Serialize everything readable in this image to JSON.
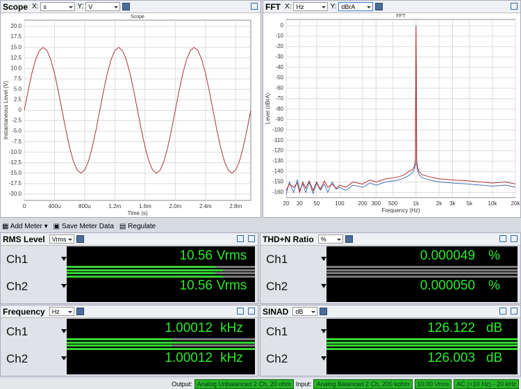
{
  "scope": {
    "header": {
      "title": "Scope",
      "x_label": "X:",
      "x_unit": "s",
      "y_label": "Y:",
      "y_unit": "V"
    },
    "chart_data": {
      "type": "line",
      "title": "Scope",
      "x_axis_label": "Time (s)",
      "y_axis_label": "Instantaneous Level (V)",
      "x": [
        0,
        5e-05,
        0.0001,
        0.00015,
        0.0002,
        0.00025,
        0.0003,
        0.00035,
        0.0004,
        0.00045,
        0.0005,
        0.00055,
        0.0006,
        0.00065,
        0.0007,
        0.00075,
        0.0008,
        0.00085,
        0.0009,
        0.00095,
        0.001,
        0.00105,
        0.0011,
        0.00115,
        0.0012,
        0.00125,
        0.0013,
        0.00135,
        0.0014,
        0.00145,
        0.0015,
        0.00155,
        0.0016,
        0.00165,
        0.0017,
        0.00175,
        0.0018,
        0.00185,
        0.0019,
        0.00195,
        0.002,
        0.00205,
        0.0021,
        0.00215,
        0.0022,
        0.00225,
        0.0023,
        0.00235,
        0.0024,
        0.00245,
        0.0025,
        0.00255,
        0.0026,
        0.00265,
        0.0027,
        0.00275,
        0.0028,
        0.00285,
        0.0029,
        0.00295,
        0.003
      ],
      "series": [
        {
          "color": "#a8323e",
          "values": [
            0,
            4.64,
            8.82,
            12.14,
            14.27,
            15,
            14.27,
            12.14,
            8.82,
            4.64,
            0,
            -4.64,
            -8.82,
            -12.14,
            -14.27,
            -15,
            -14.27,
            -12.14,
            -8.82,
            -4.64,
            0,
            4.64,
            8.82,
            12.14,
            14.27,
            15,
            14.27,
            12.14,
            8.82,
            4.64,
            0,
            -4.64,
            -8.82,
            -12.14,
            -14.27,
            -15,
            -14.27,
            -12.14,
            -8.82,
            -4.64,
            0,
            4.64,
            8.82,
            12.14,
            14.27,
            15,
            14.27,
            12.14,
            8.82,
            4.64,
            0,
            -4.64,
            -8.82,
            -12.14,
            -14.27,
            -15,
            -14.27,
            -12.14,
            -8.82,
            -4.64,
            0
          ]
        }
      ],
      "xlim": [
        0,
        0.003
      ],
      "xticks": [
        0,
        {
          "value": 0.0004,
          "label": "400u"
        },
        {
          "value": 0.0008,
          "label": "800u"
        },
        {
          "value": 0.0012,
          "label": "1.2m"
        },
        {
          "value": 0.0016,
          "label": "1.6m"
        },
        {
          "value": 0.002,
          "label": "2.0m"
        },
        {
          "value": 0.0024,
          "label": "2.4m"
        },
        {
          "value": 0.0028,
          "label": "2.8m"
        }
      ],
      "ylim": [
        -21.5,
        21.5
      ],
      "yticks": [
        {
          "value": 20,
          "label": "20.0"
        },
        17.5,
        {
          "value": 15,
          "label": "15.0"
        },
        12.5,
        {
          "value": 10,
          "label": "10.0"
        },
        7.5,
        {
          "value": 5,
          "label": "5.0"
        },
        2.5,
        0,
        -2.5,
        {
          "value": -5,
          "label": "-5.0"
        },
        -7.5,
        {
          "value": -10,
          "label": "-10.0"
        },
        -12.5,
        {
          "value": -15,
          "label": "-15.0"
        },
        -17.5,
        {
          "value": -20,
          "label": "-20.0"
        }
      ],
      "grid": true
    }
  },
  "fft": {
    "header": {
      "title": "FFT",
      "x_label": "X:",
      "x_unit": "Hz",
      "y_label": "Y:",
      "y_unit": "dBrA"
    },
    "chart_data": {
      "type": "line",
      "title": "FFT",
      "x_axis_label": "Frequency (Hz)",
      "y_axis_label": "Level (dBrA)",
      "xlog": true,
      "x": [
        20,
        22,
        25,
        28,
        30,
        33,
        36,
        40,
        45,
        50,
        56,
        63,
        70,
        80,
        90,
        100,
        120,
        150,
        200,
        250,
        300,
        400,
        500,
        600,
        700,
        800,
        900,
        950,
        980,
        1000,
        1020,
        1050,
        1100,
        1200,
        1500,
        2000,
        3000,
        5000,
        7000,
        10000,
        15000,
        20000
      ],
      "series": [
        {
          "color": "#4a6fb0",
          "values": [
            -162,
            -150,
            -160,
            -148,
            -158,
            -152,
            -160,
            -150,
            -161,
            -151,
            -158,
            -152,
            -160,
            -150,
            -157,
            -155,
            -158,
            -153,
            -155,
            -151,
            -153,
            -150,
            -149,
            -148,
            -146,
            -144,
            -141,
            -138,
            -133,
            0,
            -133,
            -139,
            -143,
            -146,
            -148,
            -150,
            -151,
            -152,
            -153,
            -154,
            -153,
            -155
          ]
        },
        {
          "color": "#b03030",
          "values": [
            -158,
            -152,
            -155,
            -151,
            -160,
            -150,
            -156,
            -149,
            -158,
            -150,
            -157,
            -149,
            -155,
            -152,
            -156,
            -153,
            -155,
            -150,
            -152,
            -148,
            -150,
            -147,
            -146,
            -145,
            -143,
            -140,
            -138,
            -135,
            -130,
            0,
            -130,
            -136,
            -140,
            -143,
            -145,
            -147,
            -148,
            -149,
            -150,
            -151,
            -150,
            -152
          ]
        }
      ],
      "xlim": [
        20,
        20000
      ],
      "xticks": [
        20,
        30,
        50,
        100,
        200,
        300,
        500,
        {
          "value": 1000,
          "label": "1k"
        },
        {
          "value": 2000,
          "label": "2k"
        },
        {
          "value": 3000,
          "label": "3k"
        },
        {
          "value": 5000,
          "label": "5k"
        },
        {
          "value": 10000,
          "label": "10k"
        },
        {
          "value": 20000,
          "label": "20k"
        }
      ],
      "ylim": [
        -165,
        6
      ],
      "yticks": [
        0,
        -10,
        -20,
        -30,
        -40,
        -50,
        -60,
        -70,
        -80,
        -90,
        -100,
        -110,
        -120,
        -130,
        -140,
        -150,
        -160
      ],
      "grid": true
    }
  },
  "toolbar": {
    "add_meter": "Add Meter",
    "save": "Save Meter Data",
    "regulate": "Regulate"
  },
  "meters": [
    {
      "title": "RMS Level",
      "unit": "Vrms",
      "channels": [
        {
          "label": "Ch1",
          "value": "10.56",
          "unit": "Vrms"
        },
        {
          "label": "Ch2",
          "value": "10.56",
          "unit": "Vrms"
        }
      ]
    },
    {
      "title": "THD+N Ratio",
      "unit": "%",
      "channels": [
        {
          "label": "Ch1",
          "value": "0.000049",
          "unit": "%"
        },
        {
          "label": "Ch2",
          "value": "0.000050",
          "unit": "%"
        }
      ]
    },
    {
      "title": "Frequency",
      "unit": "Hz",
      "channels": [
        {
          "label": "Ch1",
          "value": "1.00012",
          "unit": "kHz"
        },
        {
          "label": "Ch2",
          "value": "1.00012",
          "unit": "kHz"
        }
      ]
    },
    {
      "title": "SINAD",
      "unit": "dB",
      "channels": [
        {
          "label": "Ch1",
          "value": "126.122",
          "unit": "dB"
        },
        {
          "label": "Ch2",
          "value": "126.003",
          "unit": "dB"
        }
      ]
    }
  ],
  "status": {
    "output_label": "Output:",
    "output": "Analog Unbalanced 2 Ch, 20 ohm",
    "input_label": "Input:",
    "input": "Analog Balanced 2 Ch, 200 kohm",
    "range": "10.00 Vrms",
    "filter": "AC (<10 Hz) - 20 kHz"
  }
}
